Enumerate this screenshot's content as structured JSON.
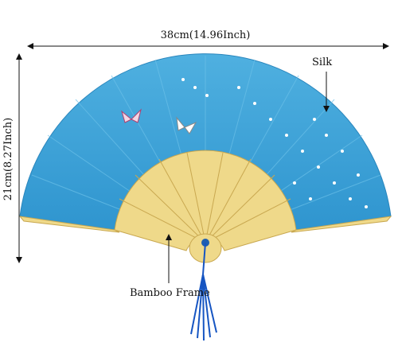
{
  "dimensions": {
    "width": "38cm(14.96Inch)",
    "height": "21cm(8.27Inch)"
  },
  "labels": {
    "material": "Silk",
    "frame": "Bamboo Frame"
  }
}
